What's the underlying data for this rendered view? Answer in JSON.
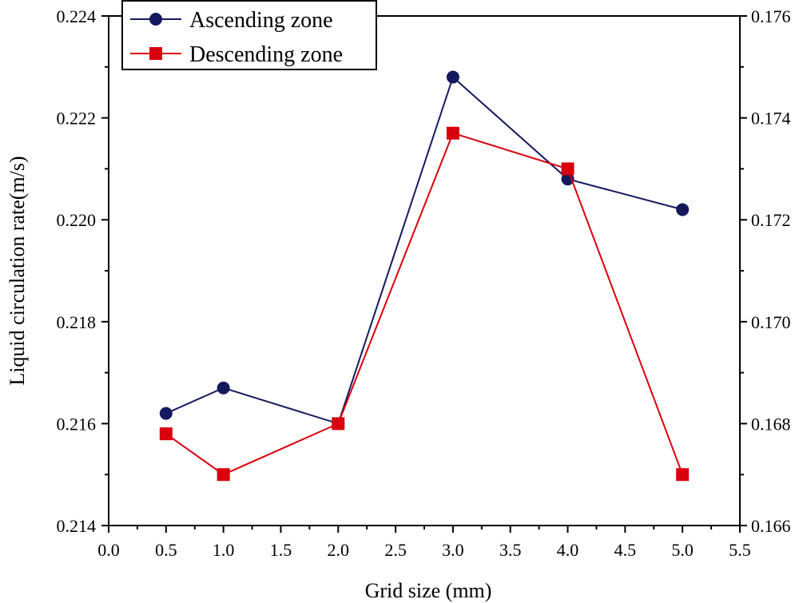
{
  "chart_data": {
    "type": "line",
    "title": "",
    "xlabel": "Grid size (mm)",
    "ylabel": "Liquid circulation rate(m/s)",
    "xlim": [
      0,
      5.5
    ],
    "ylim": [
      0.214,
      0.224
    ],
    "y2lim": [
      0.166,
      0.176
    ],
    "xticks": [
      "0.0",
      "0.5",
      "1.0",
      "1.5",
      "2.0",
      "2.5",
      "3.0",
      "3.5",
      "4.0",
      "4.5",
      "5.0",
      "5.5"
    ],
    "yticks": [
      "0.214",
      "0.216",
      "0.218",
      "0.220",
      "0.222",
      "0.224"
    ],
    "y2ticks": [
      "0.166",
      "0.168",
      "0.170",
      "0.172",
      "0.174",
      "0.176"
    ],
    "legend_position": "top-left",
    "series": [
      {
        "name": "Ascending zone",
        "axis": "left",
        "color": "#14195e",
        "marker": "circle",
        "x": [
          0.5,
          1.0,
          2.0,
          3.0,
          4.0,
          5.0
        ],
        "values": [
          0.2162,
          0.2167,
          0.216,
          0.2228,
          0.2208,
          0.2202
        ]
      },
      {
        "name": "Descending zone",
        "axis": "right",
        "color": "#d9000d",
        "marker": "square",
        "x": [
          0.5,
          1.0,
          2.0,
          3.0,
          4.0,
          5.0
        ],
        "values": [
          0.1678,
          0.167,
          0.168,
          0.1737,
          0.173,
          0.167
        ]
      }
    ]
  }
}
